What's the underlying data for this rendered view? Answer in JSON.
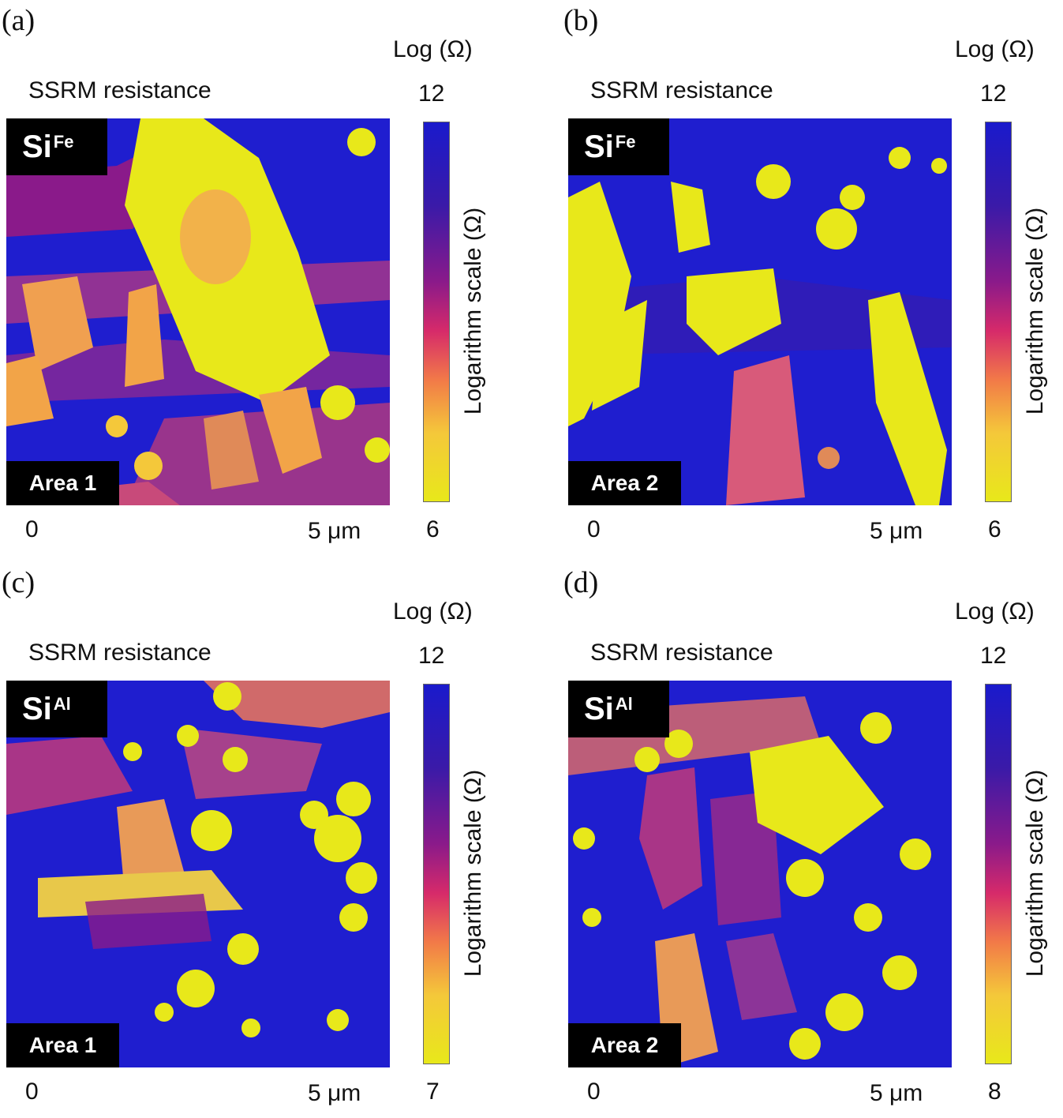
{
  "panels": [
    {
      "letter": "(a)",
      "log_label": "Log (Ω)",
      "ssrm_label": "SSRM resistance",
      "material_base": "Si",
      "material_sup": "Fe",
      "area_label": "Area 1",
      "colorbar_max": "12",
      "colorbar_min": "6",
      "colorbar_label": "Logarithm scale (Ω)",
      "x_start": "0",
      "x_end": "5 μm"
    },
    {
      "letter": "(b)",
      "log_label": "Log (Ω)",
      "ssrm_label": "SSRM resistance",
      "material_base": "Si",
      "material_sup": "Fe",
      "area_label": "Area 2",
      "colorbar_max": "12",
      "colorbar_min": "6",
      "colorbar_label": "Logarithm scale (Ω)",
      "x_start": "0",
      "x_end": "5 μm"
    },
    {
      "letter": "(c)",
      "log_label": "Log (Ω)",
      "ssrm_label": "SSRM resistance",
      "material_base": "Si",
      "material_sup": "Al",
      "area_label": "Area 1",
      "colorbar_max": "12",
      "colorbar_min": "7",
      "colorbar_label": "Logarithm scale (Ω)",
      "x_start": "0",
      "x_end": "5 μm"
    },
    {
      "letter": "(d)",
      "log_label": "Log (Ω)",
      "ssrm_label": "SSRM resistance",
      "material_base": "Si",
      "material_sup": "Al",
      "area_label": "Area 2",
      "colorbar_max": "12",
      "colorbar_min": "8",
      "colorbar_label": "Logarithm scale (Ω)",
      "x_start": "0",
      "x_end": "5 μm"
    }
  ],
  "colors": {
    "high_resistance": "#1f1ecf",
    "mid_resistance": "#d62a6a",
    "low_resistance": "#e8e81a",
    "orange": "#f28c48",
    "label_box": "#000000"
  }
}
